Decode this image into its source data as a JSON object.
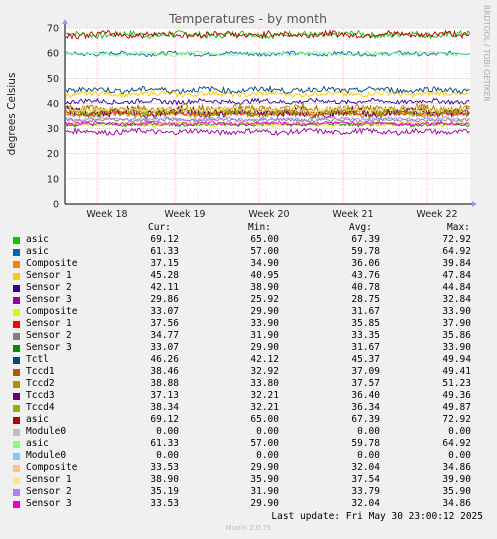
{
  "chart_data": {
    "type": "line",
    "title": "Temperatures - by month",
    "ylabel": "degrees Celsius",
    "ylim": [
      0,
      70
    ],
    "yticks": [
      0,
      10,
      20,
      30,
      40,
      50,
      60,
      70
    ],
    "xlabels": [
      "Week 18",
      "Week 19",
      "Week 20",
      "Week 21",
      "Week 22"
    ],
    "grid": true,
    "side_label": "RRDTOOL / TOBI OETIKER",
    "columns": [
      "Cur:",
      "Min:",
      "Avg:",
      "Max:"
    ],
    "series": [
      {
        "name": "asic",
        "color": "#00cc00",
        "cur": "69.12",
        "min": "65.00",
        "avg": "67.39",
        "max": "72.92",
        "level": 67.39,
        "noise": 1.2
      },
      {
        "name": "asic",
        "color": "#0066b3",
        "cur": "61.33",
        "min": "57.00",
        "avg": "59.78",
        "max": "64.92",
        "level": 59.78,
        "noise": 0.8
      },
      {
        "name": "Composite",
        "color": "#ff8000",
        "cur": "37.15",
        "min": "34.90",
        "avg": "36.06",
        "max": "39.84",
        "level": 36.06,
        "noise": 0.9
      },
      {
        "name": "Sensor 1",
        "color": "#ffcc00",
        "cur": "45.28",
        "min": "40.95",
        "avg": "43.76",
        "max": "47.84",
        "level": 43.76,
        "noise": 1.0
      },
      {
        "name": "Sensor 2",
        "color": "#330099",
        "cur": "42.11",
        "min": "38.90",
        "avg": "40.78",
        "max": "44.84",
        "level": 40.78,
        "noise": 0.9
      },
      {
        "name": "Sensor 3",
        "color": "#990099",
        "cur": "29.86",
        "min": "25.92",
        "avg": "28.75",
        "max": "32.84",
        "level": 28.75,
        "noise": 1.0
      },
      {
        "name": "Composite",
        "color": "#ccff00",
        "cur": "33.07",
        "min": "29.90",
        "avg": "31.67",
        "max": "33.90",
        "level": 31.67,
        "noise": 0.7
      },
      {
        "name": "Sensor 1",
        "color": "#ff0000",
        "cur": "37.56",
        "min": "33.90",
        "avg": "35.85",
        "max": "37.90",
        "level": 35.85,
        "noise": 0.7
      },
      {
        "name": "Sensor 2",
        "color": "#808080",
        "cur": "34.77",
        "min": "31.90",
        "avg": "33.35",
        "max": "35.86",
        "level": 33.35,
        "noise": 0.7
      },
      {
        "name": "Sensor 3",
        "color": "#008f00",
        "cur": "33.07",
        "min": "29.90",
        "avg": "31.67",
        "max": "33.90",
        "level": 31.67,
        "noise": 0.7
      },
      {
        "name": "Tctl",
        "color": "#00487d",
        "cur": "46.26",
        "min": "42.12",
        "avg": "45.37",
        "max": "49.94",
        "level": 45.37,
        "noise": 1.1
      },
      {
        "name": "Tccd1",
        "color": "#b35a00",
        "cur": "38.46",
        "min": "32.92",
        "avg": "37.09",
        "max": "49.41",
        "level": 37.09,
        "noise": 1.8
      },
      {
        "name": "Tccd2",
        "color": "#b38f00",
        "cur": "38.88",
        "min": "33.80",
        "avg": "37.57",
        "max": "51.23",
        "level": 37.57,
        "noise": 1.8
      },
      {
        "name": "Tccd3",
        "color": "#6b006b",
        "cur": "37.13",
        "min": "32.21",
        "avg": "36.40",
        "max": "49.36",
        "level": 36.4,
        "noise": 1.8
      },
      {
        "name": "Tccd4",
        "color": "#8fb300",
        "cur": "38.34",
        "min": "32.21",
        "avg": "36.34",
        "max": "49.87",
        "level": 36.34,
        "noise": 1.8
      },
      {
        "name": "asic",
        "color": "#b30000",
        "cur": "69.12",
        "min": "65.00",
        "avg": "67.39",
        "max": "72.92",
        "level": 67.39,
        "noise": 1.2
      },
      {
        "name": "Module0",
        "color": "#bebebe",
        "cur": "0.00",
        "min": "0.00",
        "avg": "0.00",
        "max": "0.00",
        "level": 0,
        "noise": 0
      },
      {
        "name": "asic",
        "color": "#80ff80",
        "cur": "61.33",
        "min": "57.00",
        "avg": "59.78",
        "max": "64.92",
        "level": 59.78,
        "noise": 0.8
      },
      {
        "name": "Module0",
        "color": "#80c9ff",
        "cur": "0.00",
        "min": "0.00",
        "avg": "0.00",
        "max": "0.00",
        "level": 0,
        "noise": 0
      },
      {
        "name": "Composite",
        "color": "#ffc080",
        "cur": "33.53",
        "min": "29.90",
        "avg": "32.04",
        "max": "34.86",
        "level": 32.04,
        "noise": 0.7
      },
      {
        "name": "Sensor 1",
        "color": "#ffe680",
        "cur": "38.90",
        "min": "35.90",
        "avg": "37.54",
        "max": "39.90",
        "level": 37.54,
        "noise": 0.7
      },
      {
        "name": "Sensor 2",
        "color": "#aa80ff",
        "cur": "35.19",
        "min": "31.90",
        "avg": "33.79",
        "max": "35.90",
        "level": 33.79,
        "noise": 0.7
      },
      {
        "name": "Sensor 3",
        "color": "#ee00cc",
        "cur": "33.53",
        "min": "29.90",
        "avg": "32.04",
        "max": "34.86",
        "level": 32.04,
        "noise": 0.7
      }
    ]
  },
  "footer": {
    "last_update": "Last update: Fri May 30 23:00:12 2025",
    "munin": "Munin 2.0.75"
  }
}
